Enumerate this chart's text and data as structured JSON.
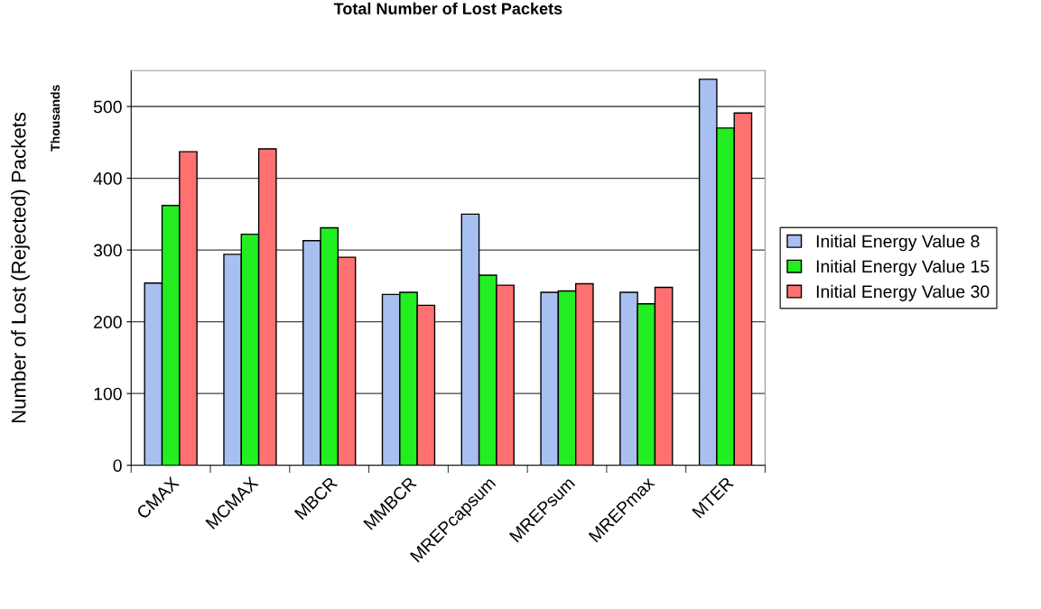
{
  "chart_data": {
    "type": "bar",
    "title": "Total Number of Lost Packets",
    "ylabel": "Number of Lost (Rejected) Packets",
    "annotations": [
      "Thousands"
    ],
    "categories": [
      "CMAX",
      "MCMAX",
      "MBCR",
      "MMBCR",
      "MREPcapsum",
      "MREPsum",
      "MREPmax",
      "MTER"
    ],
    "series": [
      {
        "name": "Initial Energy Value 8",
        "color": "#a8c0f0",
        "values": [
          254,
          294,
          313,
          238,
          350,
          241,
          241,
          538
        ]
      },
      {
        "name": "Initial Energy Value 15",
        "color": "#22ee22",
        "values": [
          362,
          322,
          331,
          241,
          265,
          243,
          225,
          470
        ]
      },
      {
        "name": "Initial Energy Value 30",
        "color": "#ff7070",
        "values": [
          437,
          441,
          290,
          223,
          251,
          253,
          248,
          491
        ]
      }
    ],
    "ylim": [
      0,
      550
    ],
    "yticks": [
      0,
      100,
      200,
      300,
      400,
      500
    ],
    "grid": "y",
    "legend": "right"
  }
}
